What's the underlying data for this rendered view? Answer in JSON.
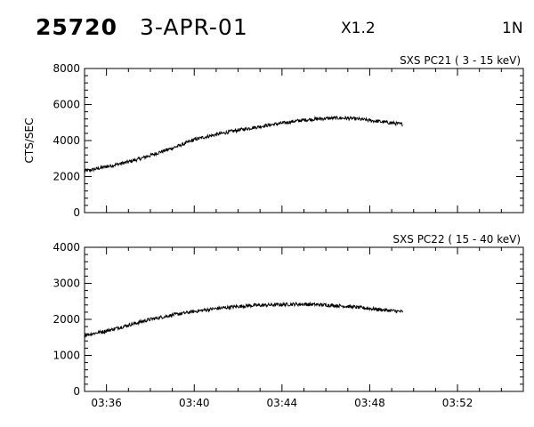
{
  "header": {
    "id": "25720",
    "date": "3-APR-01",
    "scale": "X1.2",
    "code": "1N"
  },
  "chart_data": [
    {
      "type": "line",
      "title": "SXS PC21  (  3 - 15 keV)",
      "xlabel": "",
      "ylabel": "CTS/SEC",
      "ylim": [
        0,
        8000
      ],
      "yticks": [
        0,
        2000,
        4000,
        6000,
        8000
      ],
      "xlim": [
        "03:35:00",
        "03:55:00"
      ],
      "xticks": [
        "03:36",
        "03:40",
        "03:44",
        "03:48",
        "03:52"
      ],
      "show_xtick_labels": false,
      "grid": false,
      "series": [
        {
          "x": [
            "03:35:00",
            "03:35:30",
            "03:36:00",
            "03:36:30",
            "03:37:00",
            "03:37:30",
            "03:38:00",
            "03:38:30",
            "03:39:00",
            "03:39:30",
            "03:40:00",
            "03:40:30",
            "03:41:00",
            "03:41:30",
            "03:42:00",
            "03:42:30",
            "03:43:00",
            "03:43:30",
            "03:44:00",
            "03:44:30",
            "03:45:00",
            "03:45:30",
            "03:46:00",
            "03:46:30",
            "03:47:00",
            "03:47:30",
            "03:48:00",
            "03:48:30",
            "03:49:00",
            "03:49:30"
          ],
          "y": [
            2300,
            2420,
            2550,
            2680,
            2820,
            2980,
            3180,
            3380,
            3580,
            3800,
            4050,
            4200,
            4330,
            4460,
            4580,
            4680,
            4780,
            4880,
            4960,
            5060,
            5140,
            5190,
            5230,
            5250,
            5240,
            5190,
            5120,
            5050,
            4980,
            4900
          ]
        }
      ]
    },
    {
      "type": "line",
      "title": "SXS PC22  ( 15 - 40 keV)",
      "xlabel": "",
      "ylabel": "",
      "ylim": [
        0,
        4000
      ],
      "yticks": [
        0,
        1000,
        2000,
        3000,
        4000
      ],
      "xlim": [
        "03:35:00",
        "03:55:00"
      ],
      "xticks": [
        "03:36",
        "03:40",
        "03:44",
        "03:48",
        "03:52"
      ],
      "show_xtick_labels": true,
      "grid": false,
      "series": [
        {
          "x": [
            "03:35:00",
            "03:35:30",
            "03:36:00",
            "03:36:30",
            "03:37:00",
            "03:37:30",
            "03:38:00",
            "03:38:30",
            "03:39:00",
            "03:39:30",
            "03:40:00",
            "03:40:30",
            "03:41:00",
            "03:41:30",
            "03:42:00",
            "03:42:30",
            "03:43:00",
            "03:43:30",
            "03:44:00",
            "03:44:30",
            "03:45:00",
            "03:45:30",
            "03:46:00",
            "03:46:30",
            "03:47:00",
            "03:47:30",
            "03:48:00",
            "03:48:30",
            "03:49:00",
            "03:49:30"
          ],
          "y": [
            1560,
            1620,
            1680,
            1760,
            1840,
            1920,
            2000,
            2060,
            2120,
            2170,
            2220,
            2260,
            2300,
            2330,
            2360,
            2380,
            2390,
            2400,
            2410,
            2420,
            2420,
            2410,
            2400,
            2380,
            2360,
            2330,
            2300,
            2270,
            2240,
            2210
          ]
        }
      ]
    }
  ]
}
